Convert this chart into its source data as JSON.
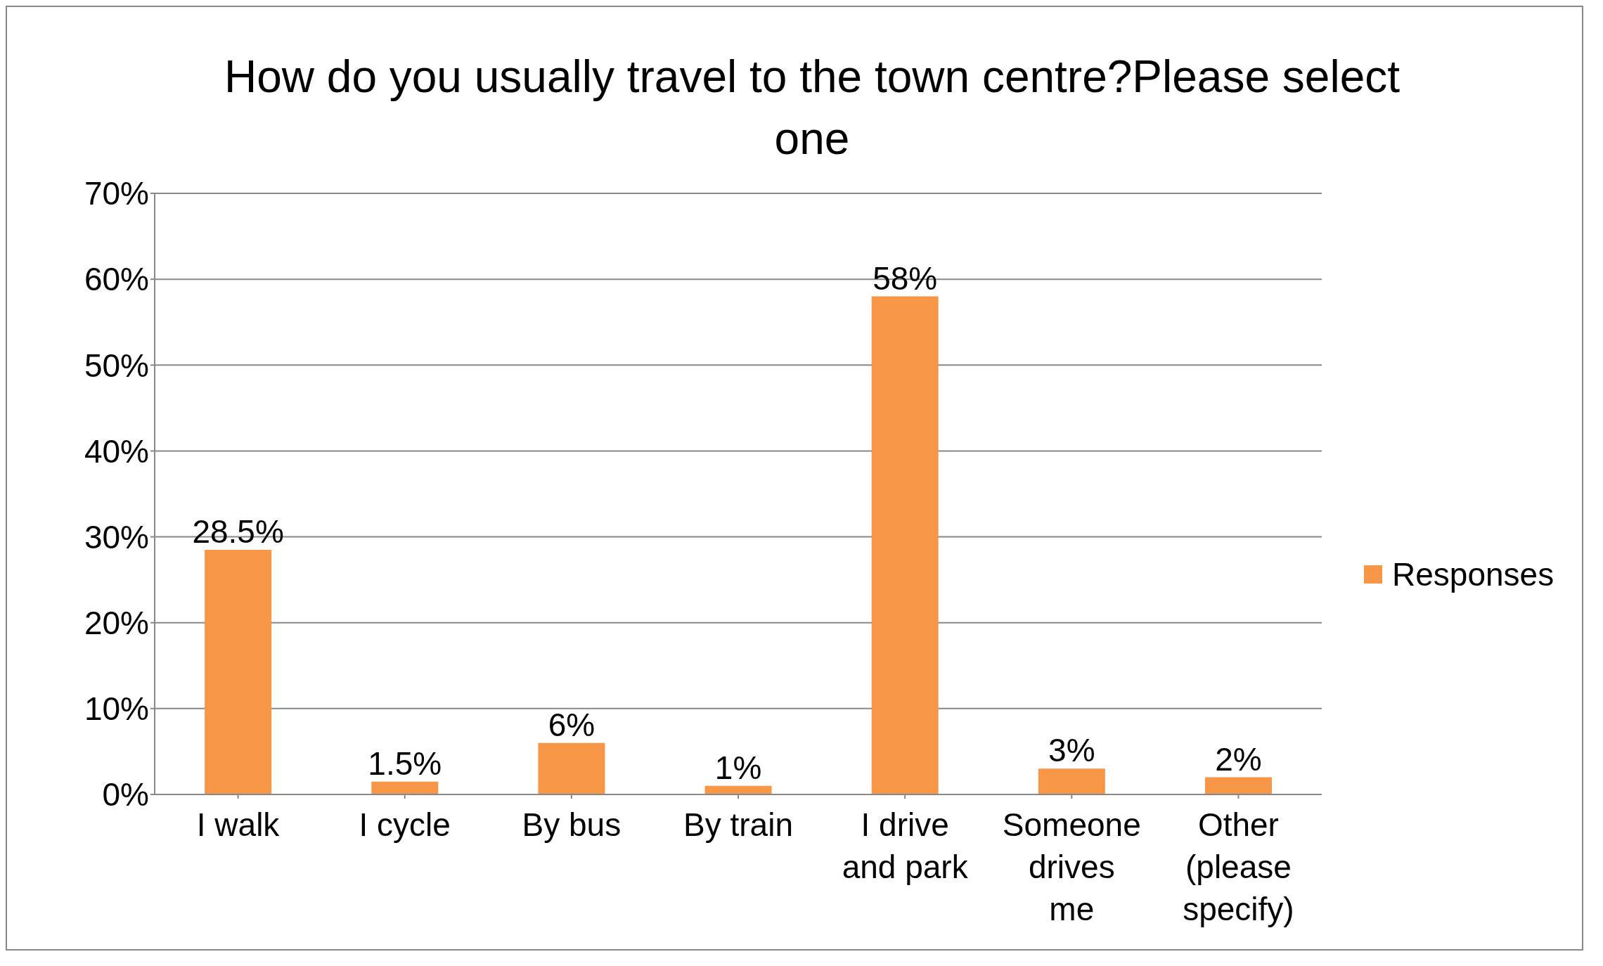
{
  "chart_data": {
    "type": "bar",
    "title": "How do you usually travel to the town centre?Please select one",
    "categories": [
      "I walk",
      "I cycle",
      "By bus",
      "By train",
      "I drive and park",
      "Someone drives me",
      "Other (please specify)"
    ],
    "series": [
      {
        "name": "Responses",
        "color": "#f79646",
        "values": [
          28.5,
          1.5,
          6,
          1,
          58,
          3,
          2
        ],
        "value_labels": [
          "28.5%",
          "1.5%",
          "6%",
          "1%",
          "58%",
          "3%",
          "2%"
        ]
      }
    ],
    "ylim": [
      0,
      70
    ],
    "yticks": [
      {
        "value": 0,
        "label": "0%"
      },
      {
        "value": 10,
        "label": "10%"
      },
      {
        "value": 20,
        "label": "20%"
      },
      {
        "value": 30,
        "label": "30%"
      },
      {
        "value": 40,
        "label": "40%"
      },
      {
        "value": 50,
        "label": "50%"
      },
      {
        "value": 60,
        "label": "60%"
      },
      {
        "value": 70,
        "label": "70%"
      }
    ],
    "grid": "y",
    "legend": "right"
  }
}
